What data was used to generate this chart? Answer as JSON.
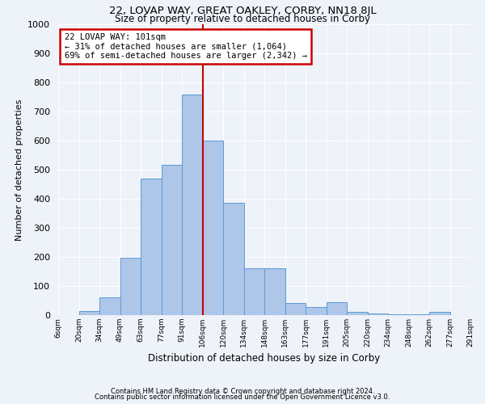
{
  "title_line1": "22, LOVAP WAY, GREAT OAKLEY, CORBY, NN18 8JL",
  "title_line2": "Size of property relative to detached houses in Corby",
  "xlabel": "Distribution of detached houses by size in Corby",
  "ylabel": "Number of detached properties",
  "bar_labels": [
    "6sqm",
    "20sqm",
    "34sqm",
    "49sqm",
    "63sqm",
    "77sqm",
    "91sqm",
    "106sqm",
    "120sqm",
    "134sqm",
    "148sqm",
    "163sqm",
    "177sqm",
    "191sqm",
    "205sqm",
    "220sqm",
    "234sqm",
    "248sqm",
    "262sqm",
    "277sqm",
    "291sqm"
  ],
  "bar_values": [
    0,
    15,
    62,
    197,
    470,
    518,
    757,
    600,
    385,
    162,
    160,
    42,
    27,
    45,
    10,
    5,
    3,
    3,
    10,
    0
  ],
  "bar_color": "#aec6e8",
  "bar_edge_color": "#5b9bd5",
  "vline_color": "#cc0000",
  "annotation_title": "22 LOVAP WAY: 101sqm",
  "annotation_line2": "← 31% of detached houses are smaller (1,064)",
  "annotation_line3": "69% of semi-detached houses are larger (2,342) →",
  "annotation_box_color": "#ffffff",
  "annotation_box_edge_color": "#cc0000",
  "ylim": [
    0,
    1000
  ],
  "yticks": [
    0,
    100,
    200,
    300,
    400,
    500,
    600,
    700,
    800,
    900,
    1000
  ],
  "footnote1": "Contains HM Land Registry data © Crown copyright and database right 2024.",
  "footnote2": "Contains public sector information licensed under the Open Government Licence v3.0.",
  "bg_color": "#eef2f9",
  "grid_color": "#ffffff"
}
